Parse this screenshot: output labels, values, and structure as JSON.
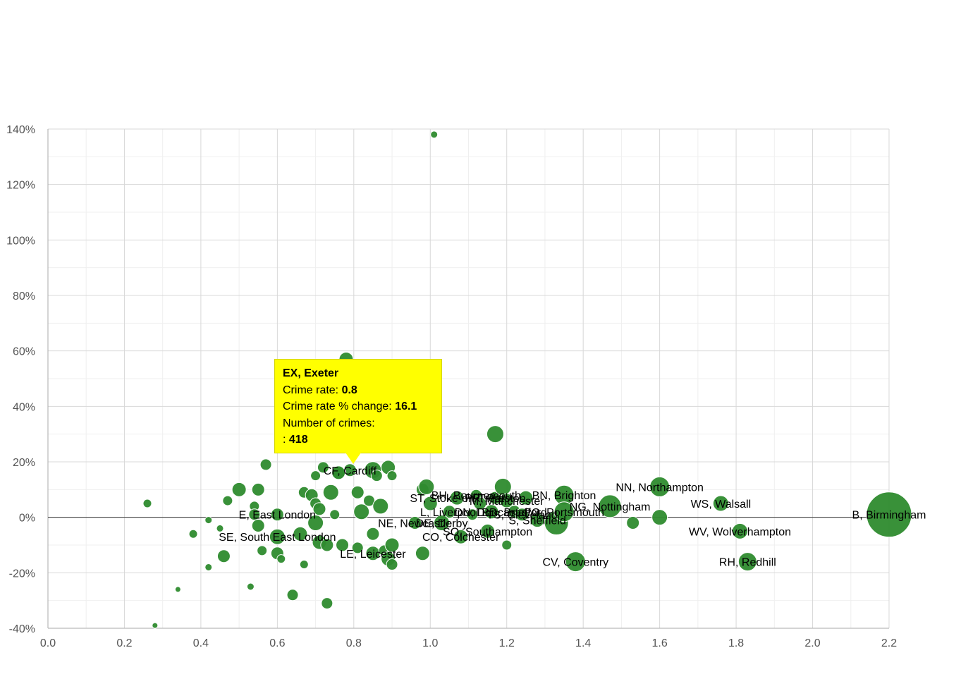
{
  "chart_data": {
    "type": "scatter",
    "variant": "bubble",
    "title": "",
    "xlabel": "",
    "ylabel": "",
    "xlim": [
      0,
      2.2
    ],
    "ylim": [
      -40,
      140
    ],
    "x_ticks": [
      0,
      0.2,
      0.4,
      0.6,
      0.8,
      1.0,
      1.2,
      1.4,
      1.6,
      1.8,
      2.0,
      2.2
    ],
    "x_tick_labels": [
      "0.0",
      "0.2",
      "0.4",
      "0.6",
      "0.8",
      "1.0",
      "1.2",
      "1.4",
      "1.6",
      "1.8",
      "2.0",
      "2.2"
    ],
    "y_ticks": [
      -40,
      -20,
      0,
      20,
      40,
      60,
      80,
      100,
      120,
      140
    ],
    "y_tick_labels": [
      "-40%",
      "-20%",
      "0%",
      "20%",
      "40%",
      "60%",
      "80%",
      "100%",
      "120%",
      "140%"
    ],
    "colors": {
      "bubble": "#2e8b2e",
      "bubble_edge": "#ffffff",
      "highlight": "#ffffff",
      "grid": "#d8d8d8",
      "minor_grid": "#efefef",
      "zero_line": "#333333"
    },
    "points": [
      {
        "x": 1.01,
        "y": 138,
        "s": 5,
        "label": ""
      },
      {
        "x": 0.78,
        "y": 57,
        "s": 10,
        "label": ""
      },
      {
        "x": 1.17,
        "y": 30,
        "s": 12,
        "label": ""
      },
      {
        "x": 0.57,
        "y": 19,
        "s": 8,
        "label": ""
      },
      {
        "x": 0.72,
        "y": 18,
        "s": 8,
        "label": ""
      },
      {
        "x": 0.85,
        "y": 17,
        "s": 12,
        "label": ""
      },
      {
        "x": 0.89,
        "y": 18,
        "s": 10,
        "label": ""
      },
      {
        "x": 0.79,
        "y": 17,
        "s": 9,
        "label": "CF, Cardiff"
      },
      {
        "x": 0.7,
        "y": 15,
        "s": 7,
        "label": ""
      },
      {
        "x": 0.86,
        "y": 15,
        "s": 8,
        "label": ""
      },
      {
        "x": 0.9,
        "y": 15,
        "s": 7,
        "label": ""
      },
      {
        "x": 0.26,
        "y": 5,
        "s": 6,
        "label": ""
      },
      {
        "x": 0.47,
        "y": 6,
        "s": 7,
        "label": ""
      },
      {
        "x": 0.5,
        "y": 10,
        "s": 10,
        "label": ""
      },
      {
        "x": 0.55,
        "y": 10,
        "s": 9,
        "label": ""
      },
      {
        "x": 0.54,
        "y": 4,
        "s": 7,
        "label": ""
      },
      {
        "x": 0.54,
        "y": 1,
        "s": 8,
        "label": ""
      },
      {
        "x": 0.6,
        "y": 1,
        "s": 9,
        "label": "E, East London"
      },
      {
        "x": 0.67,
        "y": 9,
        "s": 8,
        "label": ""
      },
      {
        "x": 0.69,
        "y": 8,
        "s": 9,
        "label": ""
      },
      {
        "x": 0.7,
        "y": 5,
        "s": 8,
        "label": ""
      },
      {
        "x": 0.71,
        "y": 3,
        "s": 9,
        "label": ""
      },
      {
        "x": 0.74,
        "y": 9,
        "s": 11,
        "label": ""
      },
      {
        "x": 0.75,
        "y": 1,
        "s": 7,
        "label": ""
      },
      {
        "x": 0.81,
        "y": 9,
        "s": 9,
        "label": ""
      },
      {
        "x": 0.82,
        "y": 2,
        "s": 11,
        "label": ""
      },
      {
        "x": 0.84,
        "y": 6,
        "s": 8,
        "label": ""
      },
      {
        "x": 0.87,
        "y": 4,
        "s": 11,
        "label": ""
      },
      {
        "x": 0.98,
        "y": 10,
        "s": 9,
        "label": ""
      },
      {
        "x": 0.99,
        "y": 11,
        "s": 11,
        "label": ""
      },
      {
        "x": 1.0,
        "y": 5,
        "s": 10,
        "label": ""
      },
      {
        "x": 1.07,
        "y": 7,
        "s": 10,
        "label": "ST, Stoke-on-Trent"
      },
      {
        "x": 1.12,
        "y": 8,
        "s": 8,
        "label": "BH, Bournemouth"
      },
      {
        "x": 1.13,
        "y": 5,
        "s": 9,
        "label": ""
      },
      {
        "x": 1.17,
        "y": 7,
        "s": 9,
        "label": "PR, Preston"
      },
      {
        "x": 1.19,
        "y": 11,
        "s": 12,
        "label": ""
      },
      {
        "x": 1.2,
        "y": 6,
        "s": 10,
        "label": "M, Manchester"
      },
      {
        "x": 1.25,
        "y": 7,
        "s": 10,
        "label": ""
      },
      {
        "x": 1.35,
        "y": 8,
        "s": 14,
        "label": "BN, Brighton"
      },
      {
        "x": 1.05,
        "y": 2,
        "s": 9,
        "label": "L, Liverpool"
      },
      {
        "x": 1.11,
        "y": 1,
        "s": 8,
        "label": ""
      },
      {
        "x": 1.16,
        "y": 2,
        "s": 10,
        "label": "DN, Doncaster"
      },
      {
        "x": 1.22,
        "y": 2,
        "s": 9,
        "label": "BD, Bradford"
      },
      {
        "x": 1.24,
        "y": 1,
        "s": 9,
        "label": "TS, Cleveland"
      },
      {
        "x": 1.28,
        "y": -1,
        "s": 10,
        "label": "S, Sheffield"
      },
      {
        "x": 1.33,
        "y": -2,
        "s": 17,
        "label": ""
      },
      {
        "x": 1.35,
        "y": 2,
        "s": 14,
        "label": "PO, Portsmouth"
      },
      {
        "x": 1.47,
        "y": 4,
        "s": 16,
        "label": "NG, Nottingham"
      },
      {
        "x": 1.53,
        "y": -2,
        "s": 9,
        "label": ""
      },
      {
        "x": 1.6,
        "y": 11,
        "s": 14,
        "label": "NN, Northampton"
      },
      {
        "x": 1.6,
        "y": 0,
        "s": 11,
        "label": ""
      },
      {
        "x": 1.76,
        "y": 5,
        "s": 11,
        "label": "WS, Walsall"
      },
      {
        "x": 1.81,
        "y": -5,
        "s": 11,
        "label": "WV, Wolverhampton"
      },
      {
        "x": 1.83,
        "y": -16,
        "s": 13,
        "label": "RH, Redhill"
      },
      {
        "x": 1.38,
        "y": -16,
        "s": 14,
        "label": "CV, Coventry"
      },
      {
        "x": 1.2,
        "y": -10,
        "s": 7,
        "label": ""
      },
      {
        "x": 2.2,
        "y": 1,
        "s": 32,
        "label": "B, Birmingham"
      },
      {
        "x": 0.96,
        "y": -2,
        "s": 9,
        "label": "NE, Newcastle"
      },
      {
        "x": 1.03,
        "y": -2,
        "s": 11,
        "label": "DE, Derby"
      },
      {
        "x": 1.08,
        "y": -7,
        "s": 10,
        "label": "CO, Colchester"
      },
      {
        "x": 1.15,
        "y": -5,
        "s": 10,
        "label": "SO, Southampton"
      },
      {
        "x": 0.6,
        "y": -7,
        "s": 11,
        "label": "SE, South East London"
      },
      {
        "x": 0.55,
        "y": -3,
        "s": 9,
        "label": ""
      },
      {
        "x": 0.66,
        "y": -6,
        "s": 10,
        "label": ""
      },
      {
        "x": 0.7,
        "y": -2,
        "s": 11,
        "label": ""
      },
      {
        "x": 0.71,
        "y": -9,
        "s": 10,
        "label": ""
      },
      {
        "x": 0.73,
        "y": -10,
        "s": 9,
        "label": ""
      },
      {
        "x": 0.77,
        "y": -10,
        "s": 9,
        "label": ""
      },
      {
        "x": 0.81,
        "y": -11,
        "s": 8,
        "label": ""
      },
      {
        "x": 0.85,
        "y": -6,
        "s": 9,
        "label": ""
      },
      {
        "x": 0.85,
        "y": -13,
        "s": 10,
        "label": "LE, Leicester"
      },
      {
        "x": 0.88,
        "y": -12,
        "s": 8,
        "label": ""
      },
      {
        "x": 0.89,
        "y": -15,
        "s": 10,
        "label": ""
      },
      {
        "x": 0.9,
        "y": -10,
        "s": 10,
        "label": ""
      },
      {
        "x": 0.9,
        "y": -17,
        "s": 8,
        "label": ""
      },
      {
        "x": 0.98,
        "y": -13,
        "s": 10,
        "label": ""
      },
      {
        "x": 0.38,
        "y": -6,
        "s": 6,
        "label": ""
      },
      {
        "x": 0.42,
        "y": -1,
        "s": 5,
        "label": ""
      },
      {
        "x": 0.45,
        "y": -4,
        "s": 5,
        "label": ""
      },
      {
        "x": 0.46,
        "y": -14,
        "s": 9,
        "label": ""
      },
      {
        "x": 0.42,
        "y": -18,
        "s": 5,
        "label": ""
      },
      {
        "x": 0.56,
        "y": -12,
        "s": 7,
        "label": ""
      },
      {
        "x": 0.6,
        "y": -13,
        "s": 9,
        "label": ""
      },
      {
        "x": 0.61,
        "y": -15,
        "s": 6,
        "label": ""
      },
      {
        "x": 0.67,
        "y": -17,
        "s": 6,
        "label": ""
      },
      {
        "x": 0.34,
        "y": -26,
        "s": 4,
        "label": ""
      },
      {
        "x": 0.53,
        "y": -25,
        "s": 5,
        "label": ""
      },
      {
        "x": 0.64,
        "y": -28,
        "s": 8,
        "label": ""
      },
      {
        "x": 0.73,
        "y": -31,
        "s": 8,
        "label": ""
      },
      {
        "x": 0.28,
        "y": -39,
        "s": 4,
        "label": ""
      },
      {
        "x": 0.76,
        "y": 16.1,
        "s": 10,
        "label": "",
        "highlight": true
      }
    ],
    "tooltip": {
      "title": "EX, Exeter",
      "line1_label": "Crime rate: ",
      "line1_value": "0.8",
      "line2_label": "Crime rate % change: ",
      "line2_value": "16.1",
      "line3_label": "Number of crimes:",
      "line4_label": ": ",
      "line4_value": "418"
    }
  }
}
